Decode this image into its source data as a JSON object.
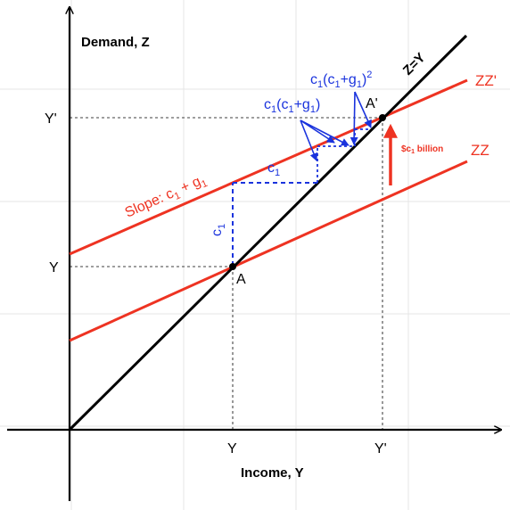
{
  "axes": {
    "y_title": "Demand, Z",
    "x_title": "Income, Y",
    "y_tick_low": "Y",
    "y_tick_high": "Y'",
    "x_tick_low": "Y",
    "x_tick_high": "Y'"
  },
  "lines": {
    "diagonal": "Z=Y",
    "zz": "ZZ",
    "zz_prime": "ZZ'"
  },
  "points": {
    "a": "A",
    "a_prime": "A'"
  },
  "annotations": {
    "slope_text": "Slope: c",
    "slope_sub1": "1",
    "slope_plus": " + g",
    "slope_sub2": "1",
    "c1_horiz": "c",
    "c1_horiz_sub": "1",
    "c1_vert": "c",
    "c1_vert_sub": "1",
    "second_a": "c",
    "second_a_sub": "1",
    "second_b": "(c",
    "second_b_sub": "1",
    "second_c": "+g",
    "second_c_sub": "1",
    "second_d": ")",
    "third_a": "c",
    "third_a_sub": "1",
    "third_b": "(c",
    "third_b_sub": "1",
    "third_c": "+g",
    "third_c_sub": "1",
    "third_d": ")",
    "third_sup": "2",
    "shift_a": "$c",
    "shift_sub": "1",
    "shift_b": " billion"
  },
  "colors": {
    "axis": "#000000",
    "zz": "#ee3322",
    "blue": "#1a33dd",
    "grid": "#e6e6e6"
  }
}
